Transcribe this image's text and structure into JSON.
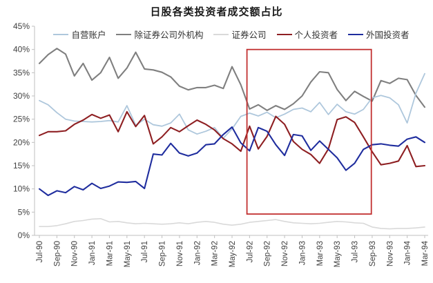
{
  "chart_data": {
    "type": "line",
    "title": "日股各类投资者成交额占比",
    "xlabel": "",
    "ylabel": "",
    "y_unit": "%",
    "ylim": [
      0,
      45
    ],
    "y_ticks": [
      "0%",
      "5%",
      "10%",
      "15%",
      "20%",
      "25%",
      "30%",
      "35%",
      "40%",
      "45%"
    ],
    "grid": false,
    "legend_position": "top",
    "x": [
      "Jul-90",
      "Aug-90",
      "Sep-90",
      "Oct-90",
      "Nov-90",
      "Dec-90",
      "Jan-91",
      "Feb-91",
      "Mar-91",
      "Apr-91",
      "May-91",
      "Jun-91",
      "Jul-91",
      "Aug-91",
      "Sep-91",
      "Oct-91",
      "Nov-91",
      "Dec-91",
      "Jan-92",
      "Feb-92",
      "Mar-92",
      "Apr-92",
      "May-92",
      "Jun-92",
      "Jul-92",
      "Aug-92",
      "Sep-92",
      "Oct-92",
      "Nov-92",
      "Dec-92",
      "Jan-93",
      "Feb-93",
      "Mar-93",
      "Apr-93",
      "May-93",
      "Jun-93",
      "Jul-93",
      "Aug-93",
      "Sep-93",
      "Oct-93",
      "Nov-93",
      "Dec-93",
      "Jan-94",
      "Feb-94",
      "Mar-94"
    ],
    "x_tick_labels": [
      "Jul-90",
      "Sep-90",
      "Nov-90",
      "Jan-91",
      "Mar-91",
      "May-91",
      "Jul-91",
      "Sep-91",
      "Nov-91",
      "Jan-92",
      "Mar-92",
      "May-92",
      "Jul-92",
      "Sep-92",
      "Nov-92",
      "Jan-93",
      "Mar-93",
      "May-93",
      "Jul-93",
      "Sep-93",
      "Nov-93",
      "Jan-94",
      "Mar-94"
    ],
    "x_tick_every": 2,
    "series": [
      {
        "name": "自营账户",
        "color": "#AEC7DC",
        "values": [
          29.0,
          28.1,
          26.4,
          25.0,
          24.6,
          24.5,
          24.4,
          24.5,
          24.7,
          24.4,
          27.9,
          23.7,
          25.0,
          23.8,
          23.5,
          24.2,
          26.1,
          22.7,
          21.8,
          22.4,
          23.2,
          20.9,
          22.9,
          25.6,
          26.3,
          25.7,
          26.5,
          25.3,
          26.1,
          27.1,
          27.4,
          26.6,
          28.6,
          26.0,
          28.2,
          26.6,
          26.1,
          27.1,
          29.6,
          30.1,
          29.6,
          28.1,
          24.2,
          30.6,
          34.8
        ]
      },
      {
        "name": "除证券公司外机构",
        "color": "#7F7F7F",
        "values": [
          37.0,
          38.9,
          40.2,
          39.0,
          34.3,
          37.0,
          33.4,
          35.0,
          38.3,
          33.8,
          36.0,
          39.4,
          35.8,
          35.6,
          35.1,
          34.1,
          32.1,
          31.3,
          31.8,
          31.8,
          32.3,
          31.6,
          36.3,
          32.4,
          27.2,
          28.1,
          26.9,
          27.9,
          27.1,
          28.3,
          30.0,
          33.0,
          35.2,
          35.0,
          31.4,
          29.0,
          31.0,
          29.9,
          28.9,
          33.3,
          32.7,
          33.8,
          33.5,
          30.1,
          27.6
        ]
      },
      {
        "name": "证券公司",
        "color": "#D9D9D9",
        "values": [
          1.9,
          1.9,
          2.1,
          2.5,
          3.0,
          3.2,
          3.5,
          3.6,
          2.9,
          3.0,
          2.7,
          2.5,
          2.6,
          2.5,
          2.4,
          2.5,
          2.7,
          2.5,
          2.8,
          3.0,
          2.8,
          2.4,
          2.2,
          2.4,
          2.8,
          3.0,
          3.2,
          3.4,
          3.0,
          2.7,
          2.6,
          2.5,
          2.6,
          2.8,
          3.0,
          2.9,
          2.7,
          2.6,
          1.8,
          1.5,
          1.4,
          1.5,
          1.5,
          1.6,
          1.8
        ]
      },
      {
        "name": "个人投资者",
        "color": "#8E1F22",
        "values": [
          21.5,
          22.3,
          22.3,
          22.5,
          23.9,
          24.8,
          26.0,
          25.2,
          25.9,
          22.3,
          26.6,
          23.4,
          25.8,
          19.7,
          21.2,
          23.2,
          22.3,
          23.6,
          24.8,
          23.9,
          22.7,
          20.8,
          19.7,
          18.1,
          23.5,
          18.6,
          21.3,
          25.6,
          23.9,
          20.2,
          18.5,
          17.4,
          15.5,
          18.6,
          24.9,
          25.5,
          24.3,
          21.2,
          18.0,
          15.2,
          15.5,
          16.0,
          19.3,
          14.8,
          15.0
        ]
      },
      {
        "name": "外国投资者",
        "color": "#1F2D9E",
        "values": [
          10.0,
          8.6,
          9.6,
          9.2,
          10.5,
          9.8,
          11.2,
          10.1,
          10.6,
          11.5,
          11.4,
          11.6,
          10.1,
          17.5,
          17.3,
          19.8,
          17.7,
          17.1,
          17.7,
          19.5,
          19.7,
          21.7,
          23.3,
          19.9,
          18.2,
          23.2,
          22.4,
          19.5,
          17.2,
          21.7,
          21.4,
          18.3,
          20.3,
          18.5,
          16.7,
          14.0,
          15.5,
          18.5,
          19.5,
          19.7,
          19.4,
          19.2,
          20.7,
          21.2,
          20.0
        ]
      }
    ],
    "annotation": {
      "type": "rect",
      "color": "#C23030",
      "x_start_label": "Jul-92",
      "x_end_label": "Sep-93",
      "x_start_index": 23.7,
      "x_end_index": 37.9,
      "y_min": 4.6,
      "y_max": 40.0
    },
    "axis_color": "#BFBFBF",
    "tick_label_color": "#404040"
  }
}
